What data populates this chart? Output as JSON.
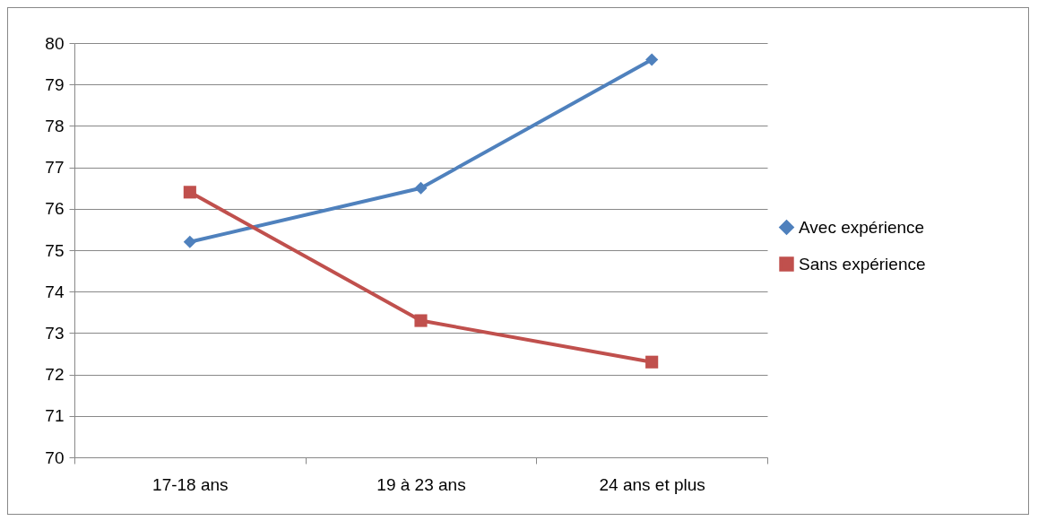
{
  "chart_data": {
    "type": "line",
    "categories": [
      "17-18 ans",
      "19 à 23 ans",
      "24 ans et plus"
    ],
    "series": [
      {
        "name": "Avec expérience",
        "color": "#4f81bd",
        "marker": "diamond",
        "values": [
          75.2,
          76.5,
          79.6
        ]
      },
      {
        "name": "Sans expérience",
        "color": "#c0504d",
        "marker": "square",
        "values": [
          76.4,
          73.3,
          72.3
        ]
      }
    ],
    "ylim": [
      70,
      80
    ],
    "yticks": [
      70,
      71,
      72,
      73,
      74,
      75,
      76,
      77,
      78,
      79,
      80
    ],
    "grid": "y",
    "legend": "right",
    "line_style": "solid"
  }
}
